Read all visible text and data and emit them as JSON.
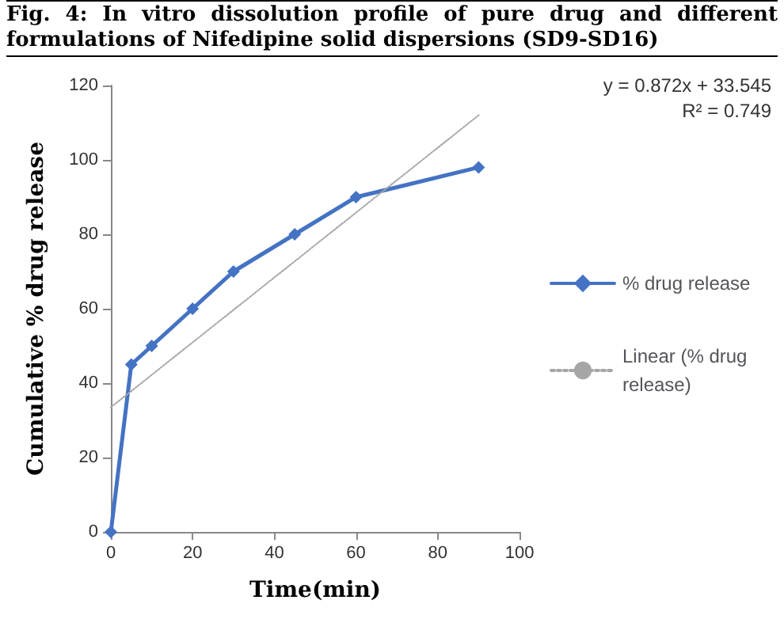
{
  "chart_data": {
    "type": "line",
    "title": "Fig. 4: In vitro dissolution profile of pure drug and different formulations of Nifedipine solid dispersions (SD9-SD16)",
    "xlabel": "Time(min)",
    "ylabel": "Cumulative % drug release",
    "x": [
      0,
      5,
      10,
      20,
      30,
      45,
      60,
      90
    ],
    "series": [
      {
        "name": "% drug release",
        "color": "#4472c4",
        "values": [
          0,
          45,
          50,
          60,
          70,
          80,
          90,
          98
        ],
        "marker": "diamond",
        "line_style": "solid"
      },
      {
        "name": "Linear (% drug release)",
        "color": "#a6a6a6",
        "x": [
          0,
          90
        ],
        "values": [
          33.5,
          112
        ],
        "marker": "none",
        "line_style": "dotted"
      }
    ],
    "annotations": [
      "y = 0.872x + 33.545",
      "R² = 0.749"
    ],
    "xlim": [
      0,
      100
    ],
    "xticks": [
      0,
      20,
      40,
      60,
      80,
      100
    ],
    "ylim": [
      0,
      120
    ],
    "yticks": [
      0,
      20,
      40,
      60,
      80,
      100,
      120
    ],
    "grid": false,
    "legend": "right"
  }
}
